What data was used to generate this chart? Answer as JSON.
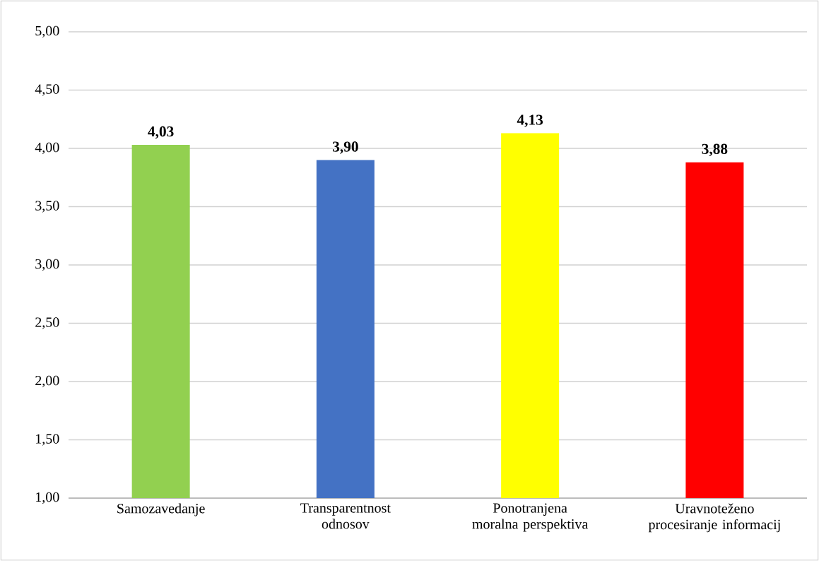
{
  "chart_data": {
    "type": "bar",
    "categories": [
      "Samozavedanje",
      "Transparentnost odnosov",
      "Ponotranjena moralna perspektiva",
      "Uravnoteženo procesiranje informacij"
    ],
    "values": [
      4.03,
      3.9,
      4.13,
      3.88
    ],
    "colors": [
      "#92d050",
      "#4472c4",
      "#ffff00",
      "#ff0000"
    ],
    "value_labels": [
      "4,03",
      "3,90",
      "4,13",
      "3,88"
    ],
    "ylim": [
      1,
      5
    ],
    "yticks": [
      {
        "value": 1,
        "label": "1,00"
      },
      {
        "value": 1.5,
        "label": "1,50"
      },
      {
        "value": 2,
        "label": "2,00"
      },
      {
        "value": 2.5,
        "label": "2,50"
      },
      {
        "value": 3,
        "label": "3,00"
      },
      {
        "value": 3.5,
        "label": "3,50"
      },
      {
        "value": 4,
        "label": "4,00"
      },
      {
        "value": 4.5,
        "label": "4,50"
      },
      {
        "value": 5,
        "label": "5,00"
      }
    ],
    "grid": "y"
  }
}
